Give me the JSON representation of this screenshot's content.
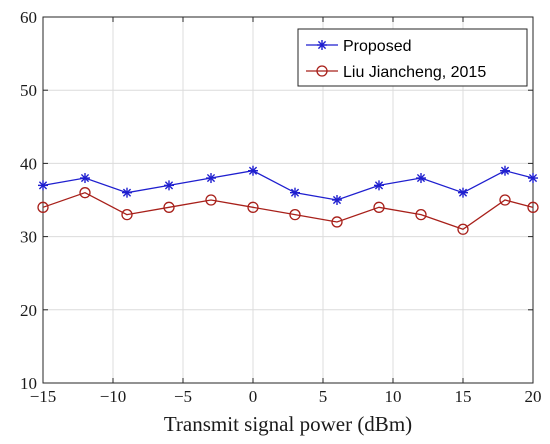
{
  "chart_data": {
    "type": "line",
    "title": "",
    "xlabel": "Transmit signal power (dBm)",
    "ylabel": "",
    "x": [
      -15,
      -12,
      -9,
      -6,
      -3,
      0,
      3,
      6,
      9,
      12,
      15,
      18,
      20
    ],
    "xlim": [
      -15,
      20
    ],
    "ylim": [
      10,
      60
    ],
    "xticks": [
      -15,
      -10,
      -5,
      0,
      5,
      10,
      15,
      20
    ],
    "yticks": [
      10,
      20,
      30,
      40,
      50,
      60
    ],
    "xtick_labels": [
      "−15",
      "−10",
      "−5",
      "0",
      "5",
      "10",
      "15",
      "20"
    ],
    "ytick_labels": [
      "10",
      "20",
      "30",
      "40",
      "50",
      "60"
    ],
    "grid": true,
    "legend_position": "top-right",
    "series": [
      {
        "name": "Proposed",
        "color": "#1f1fcf",
        "marker": "asterisk",
        "values": [
          37,
          38,
          36,
          37,
          38,
          39,
          36,
          35,
          37,
          38,
          36,
          39,
          38
        ]
      },
      {
        "name": "Liu Jiancheng, 2015",
        "color": "#a8201a",
        "marker": "circle",
        "values": [
          34,
          36,
          33,
          34,
          35,
          34,
          33,
          32,
          34,
          33,
          31,
          35,
          34
        ]
      }
    ]
  }
}
